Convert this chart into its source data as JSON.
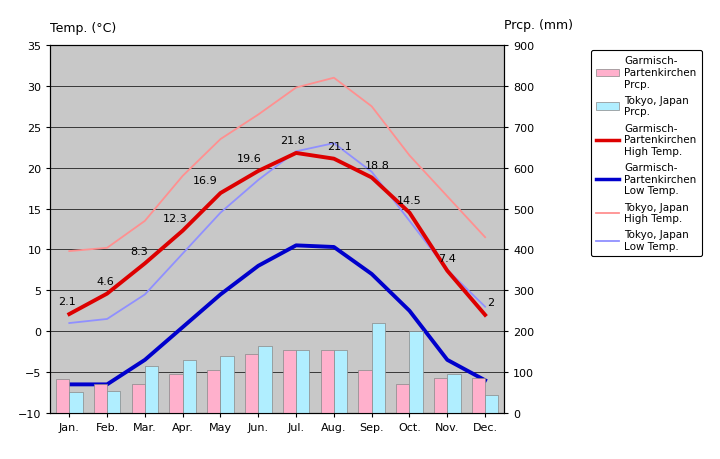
{
  "months": [
    "Jan.",
    "Feb.",
    "Mar.",
    "Apr.",
    "May",
    "Jun.",
    "Jul.",
    "Aug.",
    "Sep.",
    "Oct.",
    "Nov.",
    "Dec."
  ],
  "garmisch_high": [
    2.1,
    4.6,
    8.3,
    12.3,
    16.9,
    19.6,
    21.8,
    21.1,
    18.8,
    14.5,
    7.4,
    2.0
  ],
  "garmisch_low": [
    -6.5,
    -6.5,
    -3.5,
    0.5,
    4.5,
    8.0,
    10.5,
    10.3,
    7.0,
    2.5,
    -3.5,
    -6.0
  ],
  "tokyo_high": [
    9.8,
    10.2,
    13.5,
    19.0,
    23.5,
    26.5,
    29.8,
    31.0,
    27.5,
    21.5,
    16.5,
    11.5
  ],
  "tokyo_low": [
    1.0,
    1.5,
    4.5,
    9.5,
    14.5,
    18.5,
    22.0,
    23.0,
    19.5,
    13.5,
    7.5,
    3.0
  ],
  "garmisch_prcp": [
    82,
    72,
    72,
    95,
    105,
    145,
    155,
    155,
    105,
    72,
    85,
    85
  ],
  "tokyo_prcp": [
    52,
    55,
    115,
    130,
    140,
    165,
    155,
    155,
    220,
    200,
    95,
    45
  ],
  "garmisch_high_labels": [
    "2.1",
    "4.6",
    "8.3",
    "12.3",
    "16.9",
    "19.6",
    "21.8",
    "21.1",
    "18.8",
    "14.5",
    "7.4",
    "2"
  ],
  "temp_ylim": [
    -10,
    35
  ],
  "prcp_ylim": [
    0,
    900
  ],
  "temp_yticks": [
    -10,
    -5,
    0,
    5,
    10,
    15,
    20,
    25,
    30,
    35
  ],
  "prcp_yticks": [
    0,
    100,
    200,
    300,
    400,
    500,
    600,
    700,
    800,
    900
  ],
  "plot_bg": "#c8c8c8",
  "fig_bg": "#ffffff",
  "garmisch_high_color": "#dd0000",
  "garmisch_low_color": "#0000cc",
  "tokyo_high_color": "#ff9090",
  "tokyo_low_color": "#9090ff",
  "garmisch_prcp_color": "#ffb0cc",
  "tokyo_prcp_color": "#b0eeff",
  "title_left": "Temp. (°C)",
  "title_right": "Prcp. (mm)",
  "grid_color": "#000000",
  "label_fontsize": 8,
  "legend_labels": [
    "Garmisch-\nPartenkirchen\nPrcp.",
    "Tokyo, Japan\nPrcp.",
    "Garmisch-\nPartenkirchen\nHigh Temp.",
    "Garmisch-\nPartenkirchen\nLow Temp.",
    "Tokyo, Japan\nHigh Temp.",
    "Tokyo, Japan\nLow Temp."
  ]
}
